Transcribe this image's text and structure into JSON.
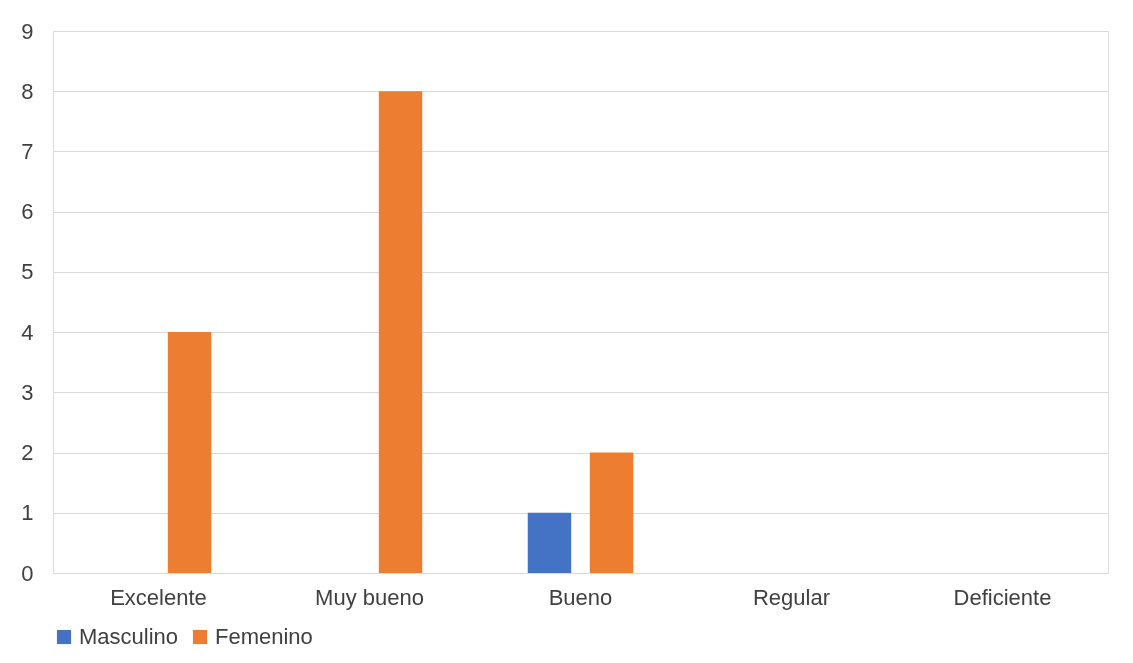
{
  "chart_data": {
    "type": "bar",
    "categories": [
      "Excelente",
      "Muy bueno",
      "Bueno",
      "Regular",
      "Deficiente"
    ],
    "series": [
      {
        "name": "Masculino",
        "color": "#4472c4",
        "values": [
          0,
          0,
          1,
          0,
          0
        ]
      },
      {
        "name": "Femenino",
        "color": "#ed7d31",
        "values": [
          4,
          8,
          2,
          0,
          0
        ]
      }
    ],
    "ylim": [
      0,
      9
    ],
    "yticks": [
      0,
      1,
      2,
      3,
      4,
      5,
      6,
      7,
      8,
      9
    ],
    "grid": "y",
    "legend": "bottom"
  }
}
